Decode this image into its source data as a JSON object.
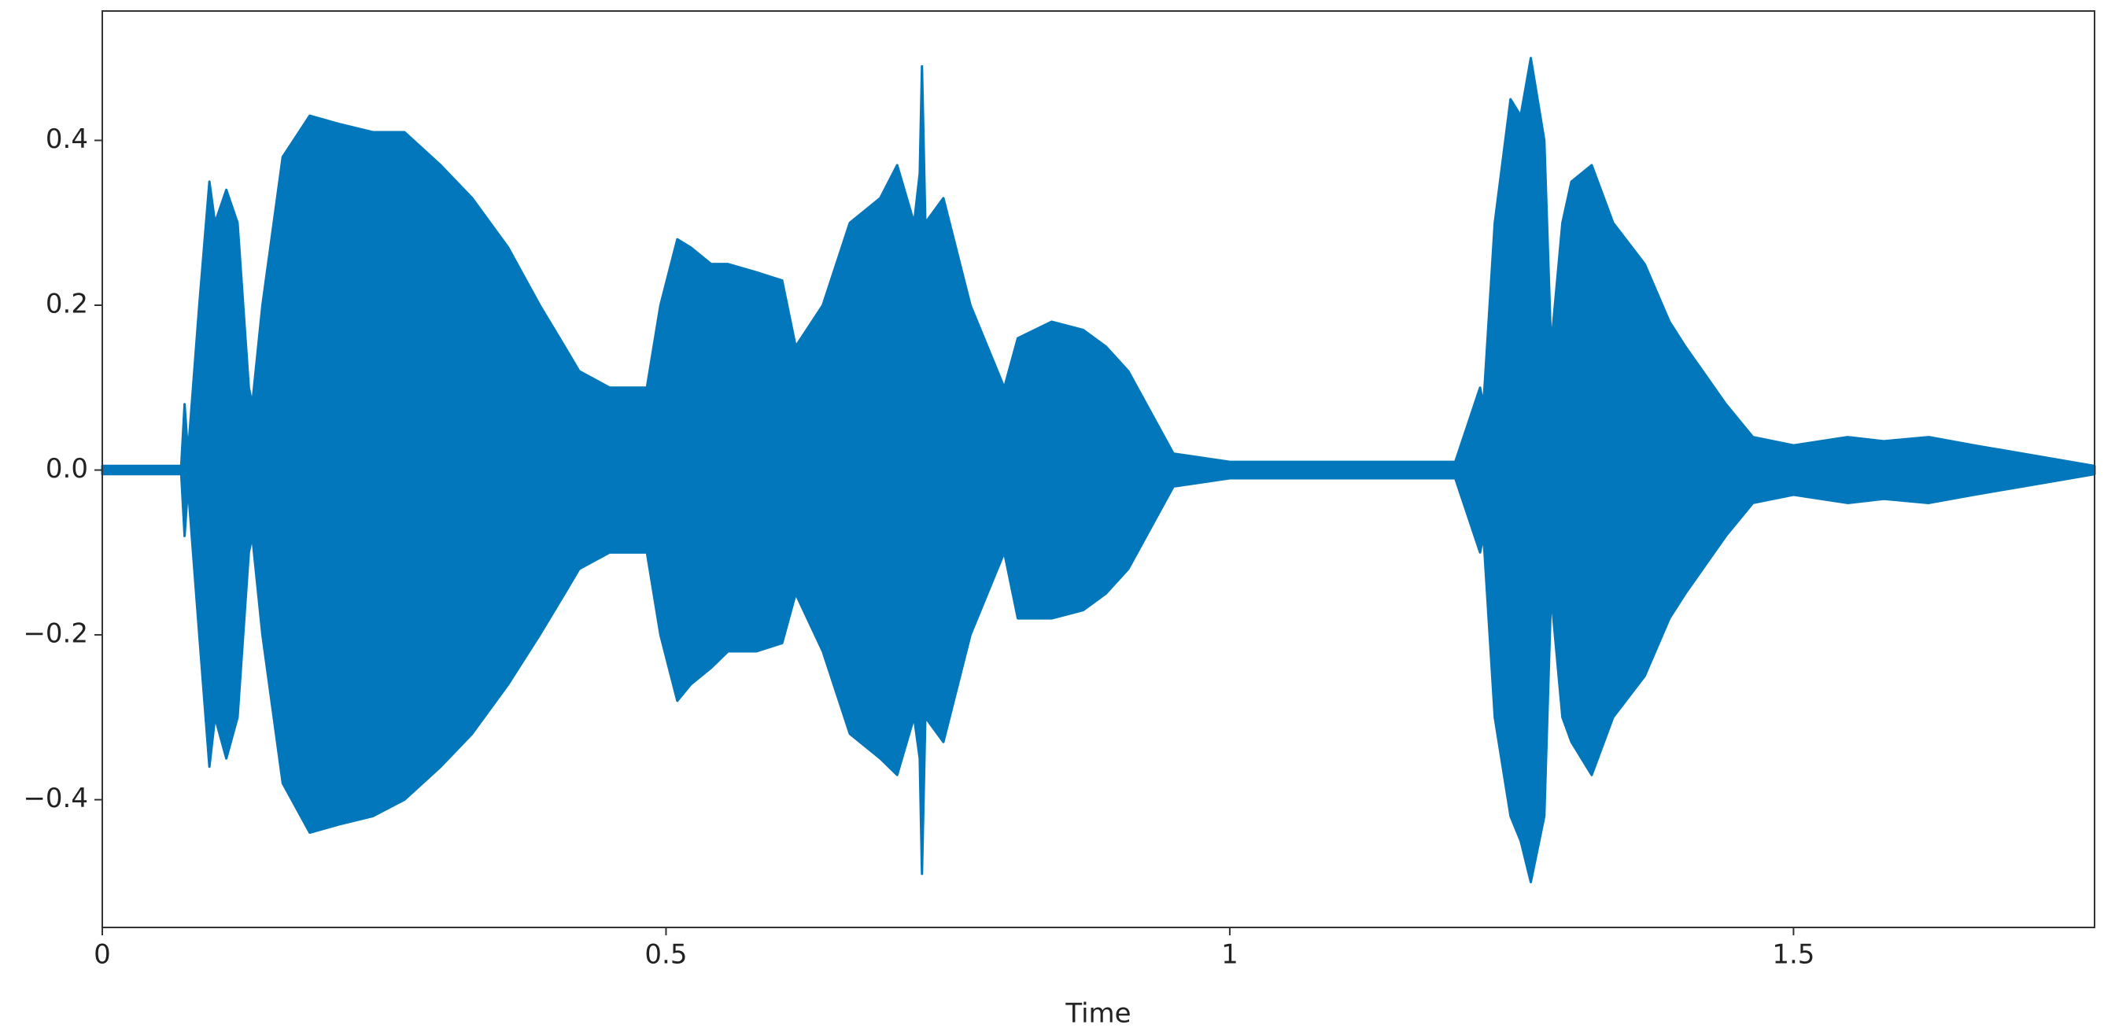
{
  "chart_data": {
    "type": "waveform",
    "x_label": "Time",
    "color": "#0277bb",
    "xlim": [
      0,
      1.767
    ],
    "ylim": [
      -0.555,
      0.557
    ],
    "xticks": [
      0,
      0.5,
      1,
      1.5
    ],
    "yticks": [
      {
        "value": -0.4,
        "label": "−0.4"
      },
      {
        "value": -0.2,
        "label": "−0.2"
      },
      {
        "value": 0,
        "label": "0.0"
      },
      0.2,
      0.4
    ],
    "x": [
      0,
      0.07,
      0.073,
      0.076,
      0.086,
      0.095,
      0.1,
      0.11,
      0.12,
      0.13,
      0.133,
      0.142,
      0.16,
      0.184,
      0.21,
      0.24,
      0.268,
      0.3,
      0.328,
      0.36,
      0.388,
      0.41,
      0.423,
      0.45,
      0.47,
      0.483,
      0.495,
      0.51,
      0.522,
      0.54,
      0.555,
      0.58,
      0.603,
      0.615,
      0.639,
      0.663,
      0.69,
      0.705,
      0.72,
      0.725,
      0.727,
      0.73,
      0.746,
      0.77,
      0.8,
      0.812,
      0.842,
      0.87,
      0.89,
      0.91,
      0.926,
      0.95,
      1.0,
      1.1,
      1.2,
      1.222,
      1.225,
      1.235,
      1.249,
      1.258,
      1.267,
      1.279,
      1.285,
      1.295,
      1.303,
      1.321,
      1.34,
      1.368,
      1.39,
      1.404,
      1.44,
      1.464,
      1.5,
      1.548,
      1.58,
      1.62,
      1.66,
      1.703,
      1.767
    ],
    "series": [
      {
        "values": [
          0.005,
          0.005,
          0.08,
          0.02,
          0.2,
          0.35,
          0.3,
          0.34,
          0.3,
          0.1,
          0.08,
          0.2,
          0.38,
          0.43,
          0.42,
          0.41,
          0.41,
          0.37,
          0.33,
          0.27,
          0.2,
          0.15,
          0.12,
          0.1,
          0.1,
          0.1,
          0.2,
          0.28,
          0.27,
          0.25,
          0.25,
          0.24,
          0.23,
          0.15,
          0.2,
          0.3,
          0.33,
          0.37,
          0.3,
          0.36,
          0.49,
          0.3,
          0.33,
          0.2,
          0.1,
          0.16,
          0.18,
          0.17,
          0.15,
          0.12,
          0.08,
          0.02,
          0.01,
          0.01,
          0.01,
          0.1,
          0.08,
          0.3,
          0.45,
          0.43,
          0.5,
          0.4,
          0.15,
          0.3,
          0.35,
          0.37,
          0.3,
          0.25,
          0.18,
          0.15,
          0.08,
          0.04,
          0.03,
          0.04,
          0.035,
          0.04,
          0.03,
          0.02,
          0.005
        ]
      },
      {
        "values": [
          -0.005,
          -0.005,
          -0.08,
          -0.02,
          -0.2,
          -0.36,
          -0.3,
          -0.35,
          -0.3,
          -0.1,
          -0.08,
          -0.2,
          -0.38,
          -0.44,
          -0.43,
          -0.42,
          -0.4,
          -0.36,
          -0.32,
          -0.26,
          -0.2,
          -0.15,
          -0.12,
          -0.1,
          -0.1,
          -0.1,
          -0.2,
          -0.28,
          -0.26,
          -0.24,
          -0.22,
          -0.22,
          -0.21,
          -0.15,
          -0.22,
          -0.32,
          -0.35,
          -0.37,
          -0.3,
          -0.35,
          -0.49,
          -0.3,
          -0.33,
          -0.2,
          -0.1,
          -0.18,
          -0.18,
          -0.17,
          -0.15,
          -0.12,
          -0.08,
          -0.02,
          -0.01,
          -0.01,
          -0.01,
          -0.1,
          -0.08,
          -0.3,
          -0.42,
          -0.45,
          -0.5,
          -0.42,
          -0.15,
          -0.3,
          -0.33,
          -0.37,
          -0.3,
          -0.25,
          -0.18,
          -0.15,
          -0.08,
          -0.04,
          -0.03,
          -0.04,
          -0.035,
          -0.04,
          -0.03,
          -0.02,
          -0.005
        ]
      }
    ]
  }
}
